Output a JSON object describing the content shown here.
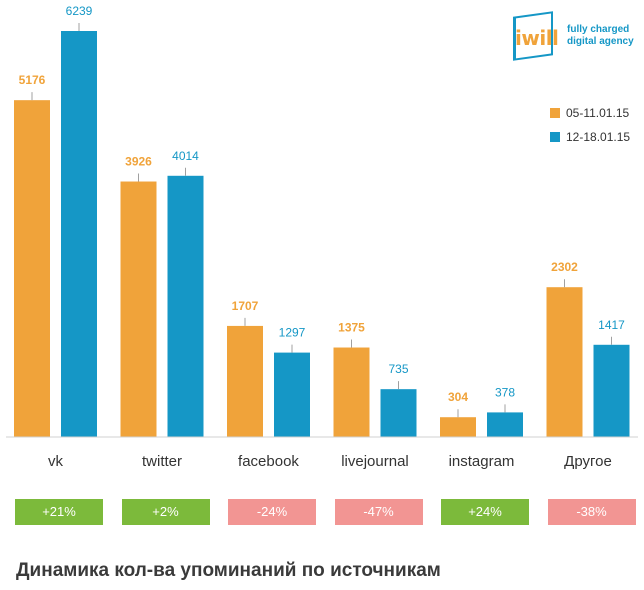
{
  "logo": {
    "word": "iwill",
    "tagline_line1": "fully charged",
    "tagline_line2": "digital agency"
  },
  "colors": {
    "series1": "#f0a33a",
    "series2": "#1597c6",
    "positive": "#7cba3b",
    "negative": "#f29593"
  },
  "chart_data": {
    "type": "bar",
    "title": "Динамика кол-ва упоминаний по источникам",
    "categories": [
      "vk",
      "twitter",
      "facebook",
      "livejournal",
      "instagram",
      "Другое"
    ],
    "series": [
      {
        "name": "05-11.01.15",
        "values": [
          5176,
          3926,
          1707,
          1375,
          304,
          2302
        ]
      },
      {
        "name": "12-18.01.15",
        "values": [
          6239,
          4014,
          1297,
          735,
          378,
          1417
        ]
      }
    ],
    "changes": [
      "+21%",
      "+2%",
      "-24%",
      "-47%",
      "+24%",
      "-38%"
    ],
    "legend_position": "top-right",
    "grid": false
  }
}
